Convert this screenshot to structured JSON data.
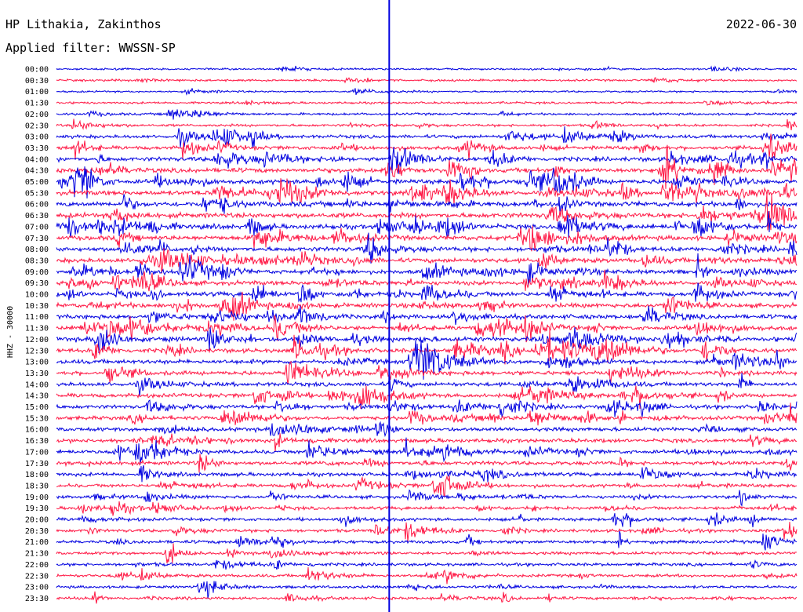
{
  "header": {
    "station": "HP Lithakia, Zakinthos",
    "date": "2022-06-30",
    "filter": "Applied filter: WWSSN-SP"
  },
  "colors": {
    "trace_a": "#0000e0",
    "trace_b": "#ff1744",
    "marker": "#0000e0"
  },
  "chart_data": {
    "type": "line",
    "title": "",
    "ylabel": "HHZ - 30000",
    "xlabel": "",
    "row_labels": [
      "00:00",
      "00:30",
      "01:00",
      "01:30",
      "02:00",
      "02:30",
      "03:00",
      "03:30",
      "04:00",
      "04:30",
      "05:00",
      "05:30",
      "06:00",
      "06:30",
      "07:00",
      "07:30",
      "08:00",
      "08:30",
      "09:00",
      "09:30",
      "10:00",
      "10:30",
      "11:00",
      "11:30",
      "12:00",
      "12:30",
      "13:00",
      "13:30",
      "14:00",
      "14:30",
      "15:00",
      "15:30",
      "16:00",
      "16:30",
      "17:00",
      "17:30",
      "18:00",
      "18:30",
      "19:00",
      "19:30",
      "20:00",
      "20:30",
      "21:00",
      "21:30",
      "22:00",
      "22:30",
      "23:00",
      "23:30"
    ],
    "row_activity": [
      0.15,
      0.2,
      0.15,
      0.2,
      0.25,
      0.3,
      0.5,
      0.6,
      0.7,
      0.75,
      0.75,
      0.8,
      0.85,
      0.85,
      0.8,
      0.8,
      0.75,
      0.75,
      0.7,
      0.7,
      0.75,
      0.75,
      0.7,
      0.7,
      0.75,
      0.7,
      0.7,
      0.7,
      0.65,
      0.65,
      0.6,
      0.6,
      0.6,
      0.6,
      0.6,
      0.6,
      0.55,
      0.5,
      0.45,
      0.45,
      0.45,
      0.45,
      0.45,
      0.4,
      0.4,
      0.4,
      0.35,
      0.35
    ],
    "marker_fraction": 0.4495,
    "grid": false,
    "legend": "none"
  }
}
